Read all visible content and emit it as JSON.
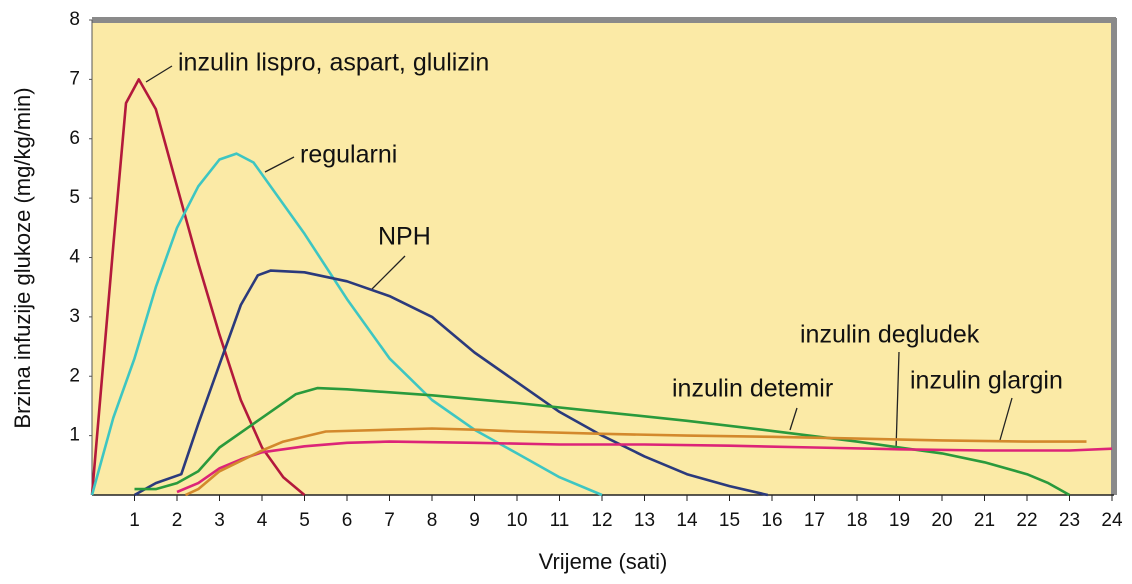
{
  "chart_data": {
    "type": "line",
    "xlabel": "Vrijeme (sati)",
    "ylabel": "Brzina infuzije glukoze (mg/kg/min)",
    "xlim": [
      0,
      24
    ],
    "ylim": [
      0,
      8
    ],
    "xticks": [
      1,
      2,
      3,
      4,
      5,
      6,
      7,
      8,
      9,
      10,
      11,
      12,
      13,
      14,
      15,
      16,
      17,
      18,
      19,
      20,
      21,
      22,
      23,
      24
    ],
    "yticks": [
      1,
      2,
      3,
      4,
      5,
      6,
      7,
      8
    ],
    "grid": false,
    "background": "#fbeaa6",
    "series": [
      {
        "name": "inzulin lispro, aspart, glulizin",
        "color": "#b3193c",
        "x": [
          0,
          0.5,
          0.8,
          1.1,
          1.5,
          2,
          2.5,
          3,
          3.5,
          4,
          4.5,
          5
        ],
        "values": [
          0,
          4.2,
          6.6,
          7.0,
          6.5,
          5.2,
          3.9,
          2.7,
          1.6,
          0.8,
          0.3,
          0
        ]
      },
      {
        "name": "regularni",
        "color": "#3ec6c2",
        "x": [
          0,
          0.5,
          1,
          1.5,
          2,
          2.5,
          3,
          3.4,
          3.8,
          4.5,
          5,
          6,
          7,
          7.5,
          8,
          9,
          10,
          11,
          12
        ],
        "values": [
          0,
          1.3,
          2.3,
          3.5,
          4.5,
          5.2,
          5.65,
          5.75,
          5.6,
          4.9,
          4.4,
          3.3,
          2.3,
          1.95,
          1.6,
          1.1,
          0.7,
          0.3,
          0
        ]
      },
      {
        "name": "NPH",
        "color": "#2b3a7c",
        "x": [
          1,
          1.5,
          2.1,
          2.5,
          3,
          3.5,
          3.9,
          4.2,
          5,
          6,
          7,
          8,
          9,
          10,
          11,
          12,
          13,
          14,
          15,
          15.9
        ],
        "values": [
          0,
          0.2,
          0.35,
          1.2,
          2.2,
          3.2,
          3.7,
          3.78,
          3.75,
          3.6,
          3.35,
          3.0,
          2.4,
          1.9,
          1.4,
          1.0,
          0.65,
          0.35,
          0.15,
          0
        ]
      },
      {
        "name": "inzulin detemir",
        "color": "#2a9a3c",
        "x": [
          1,
          1.5,
          2,
          2.5,
          3,
          4,
          4.8,
          5.3,
          6,
          8,
          10,
          12,
          14,
          16,
          18,
          20,
          21,
          22,
          22.5,
          23
        ],
        "values": [
          0.1,
          0.1,
          0.2,
          0.4,
          0.8,
          1.3,
          1.7,
          1.8,
          1.78,
          1.68,
          1.55,
          1.4,
          1.25,
          1.08,
          0.9,
          0.7,
          0.55,
          0.35,
          0.2,
          0
        ]
      },
      {
        "name": "inzulin degludek",
        "color": "#dc2478",
        "x": [
          2,
          2.5,
          3,
          3.5,
          4,
          5,
          6,
          7,
          9,
          11,
          13,
          15,
          17,
          19,
          21,
          23,
          24
        ],
        "values": [
          0.05,
          0.2,
          0.45,
          0.6,
          0.72,
          0.82,
          0.88,
          0.9,
          0.88,
          0.85,
          0.85,
          0.83,
          0.8,
          0.77,
          0.75,
          0.75,
          0.78
        ]
      },
      {
        "name": "inzulin glargin",
        "color": "#d3892c",
        "x": [
          2.2,
          2.5,
          3,
          4,
          4.5,
          5.5,
          7,
          8,
          9,
          10,
          12,
          14,
          16,
          18,
          20,
          22,
          23.4
        ],
        "values": [
          0,
          0.1,
          0.4,
          0.75,
          0.9,
          1.07,
          1.1,
          1.12,
          1.1,
          1.07,
          1.03,
          1.0,
          0.98,
          0.95,
          0.92,
          0.9,
          0.9
        ]
      }
    ]
  }
}
